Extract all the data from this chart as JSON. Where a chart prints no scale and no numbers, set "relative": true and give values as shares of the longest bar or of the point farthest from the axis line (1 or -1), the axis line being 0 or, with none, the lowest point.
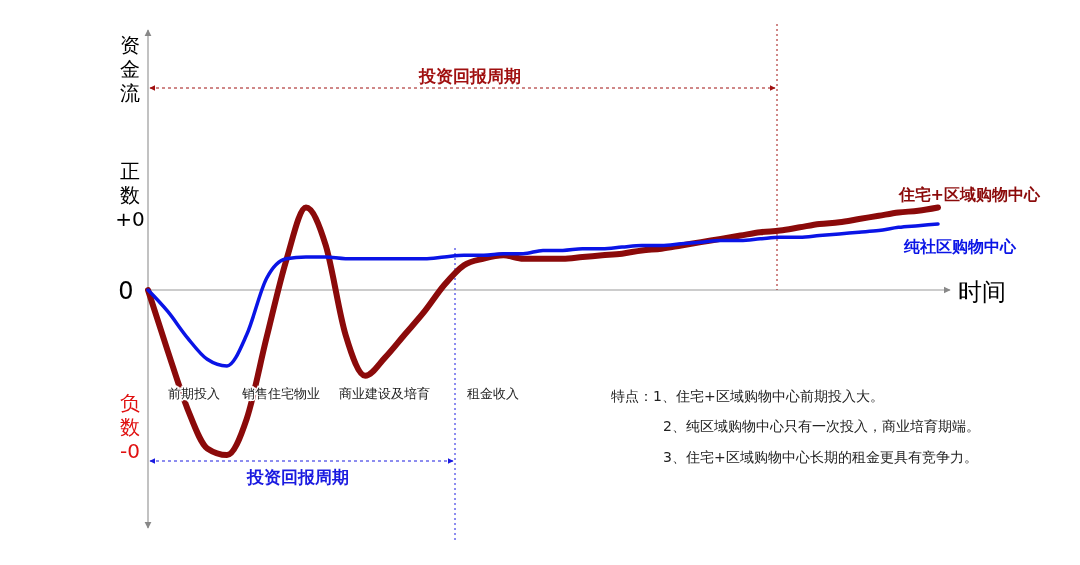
{
  "chart_data": {
    "type": "line",
    "relative": true,
    "legend": false,
    "grid": false,
    "marker": "none",
    "line_style": "solid",
    "xlabel": "时间",
    "categories": [
      null,
      null,
      null,
      null,
      null,
      null,
      null,
      null,
      null,
      null,
      null,
      null,
      null,
      null,
      null,
      null,
      null,
      null,
      null,
      null,
      null,
      null,
      null,
      null,
      null,
      null,
      null,
      null,
      null,
      null,
      null,
      null,
      null,
      null,
      null,
      null,
      null,
      null,
      null,
      null,
      null
    ],
    "series": [
      {
        "name": "住宅+区域购物中心",
        "color": "#8b0a0a",
        "values": [
          0,
          -0.37,
          -0.72,
          -0.96,
          -1,
          -0.78,
          -0.29,
          0.18,
          0.5,
          0.27,
          -0.27,
          -0.52,
          -0.41,
          -0.27,
          -0.13,
          0.03,
          0.15,
          0.19,
          0.21,
          0.19,
          0.19,
          0.19,
          0.2,
          0.21,
          0.22,
          0.24,
          0.25,
          0.27,
          0.29,
          0.31,
          0.33,
          0.35,
          0.36,
          0.38,
          0.4,
          0.41,
          0.43,
          0.45,
          0.47,
          0.48,
          0.5
        ]
      },
      {
        "name": "纯社区购物中心",
        "color": "#0a14e6",
        "values": [
          0,
          -0.13,
          -0.29,
          -0.42,
          -0.46,
          -0.27,
          0.07,
          0.19,
          0.2,
          0.2,
          0.19,
          0.19,
          0.19,
          0.19,
          0.19,
          0.2,
          0.21,
          0.21,
          0.22,
          0.22,
          0.24,
          0.24,
          0.25,
          0.25,
          0.26,
          0.27,
          0.27,
          0.28,
          0.29,
          0.3,
          0.3,
          0.31,
          0.32,
          0.32,
          0.33,
          0.34,
          0.35,
          0.36,
          0.38,
          0.39,
          0.4
        ]
      }
    ],
    "annotations": [
      "资金流",
      "正数+0",
      "0",
      "负数-0",
      "投资回报周期",
      "投资回报周期",
      "前期投入",
      "销售住宅物业",
      "商业建设及培育",
      "租金收入",
      "特点：1、住宅+区域购物中心前期投入大。",
      "2、纯区域购物中心只有一次投入，商业培育期端。",
      "3、住宅+区域购物中心长期的租金更具有竞争力。"
    ]
  }
}
